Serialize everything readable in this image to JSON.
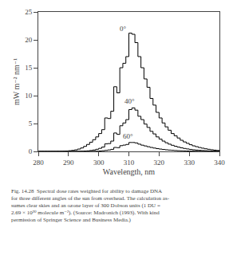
{
  "chart_data": {
    "type": "step",
    "xlabel": "Wavelength, nm",
    "ylabel": "mW m⁻² nm⁻¹",
    "caption": "Fig. 14.28  Spectral dose rates weighted for ability to damage DNA\nfor three different angles of the sun from overhead. The calculation as-\nsumes clear skies and an ozone layer of 300 Dobson units (1 DU =\n2.69 × 10²⁰ molecule m⁻²). (Source: Madronich (1993). With kind\npermission of Springer Science and Business Media.)",
    "xlim": [
      280,
      340
    ],
    "ylim": [
      0,
      25
    ],
    "xticks": [
      280,
      290,
      300,
      310,
      320,
      330,
      340
    ],
    "yticks": [
      0,
      5,
      10,
      15,
      20,
      25
    ],
    "grid": false,
    "x": [
      280,
      281,
      282,
      283,
      284,
      285,
      286,
      287,
      288,
      289,
      290,
      291,
      292,
      293,
      294,
      295,
      296,
      297,
      298,
      299,
      300,
      301,
      302,
      303,
      304,
      305,
      306,
      307,
      308,
      309,
      310,
      311,
      312,
      313,
      314,
      315,
      316,
      317,
      318,
      319,
      320,
      321,
      322,
      323,
      324,
      325,
      326,
      327,
      328,
      329,
      330,
      331,
      332,
      333,
      334,
      335,
      336,
      337,
      338,
      339,
      340
    ],
    "series": [
      {
        "color": "#000000",
        "values": [
          0.0,
          0.0,
          0.0,
          0.0,
          0.0,
          0.0,
          0.01,
          0.02,
          0.04,
          0.07,
          0.12,
          0.18,
          0.28,
          0.42,
          0.62,
          0.9,
          1.25,
          1.65,
          2.1,
          2.6,
          3.2,
          3.9,
          6.0,
          5.9,
          7.2,
          11.6,
          10.5,
          15.0,
          15.8,
          17.0,
          21.2,
          21.0,
          19.5,
          17.0,
          15.0,
          13.0,
          11.5,
          9.5,
          8.3,
          7.0,
          6.0,
          5.1,
          4.4,
          3.8,
          3.2,
          2.8,
          2.4,
          2.0,
          1.7,
          1.45,
          1.2,
          1.0,
          0.85,
          0.7,
          0.58,
          0.47,
          0.38,
          0.3,
          0.23,
          0.17,
          0.12
        ]
      },
      {
        "color": "#000000",
        "values": [
          0.0,
          0.0,
          0.0,
          0.0,
          0.0,
          0.0,
          0.0,
          0.0,
          0.0,
          0.0,
          0.0,
          0.0,
          0.01,
          0.02,
          0.03,
          0.06,
          0.1,
          0.16,
          0.25,
          0.38,
          0.55,
          0.78,
          1.35,
          1.4,
          1.85,
          3.3,
          3.05,
          4.6,
          5.1,
          5.7,
          7.5,
          7.8,
          7.4,
          6.3,
          5.7,
          4.9,
          4.3,
          3.6,
          3.13,
          2.6,
          2.2,
          1.85,
          1.55,
          1.3,
          1.1,
          0.92,
          0.77,
          0.64,
          0.53,
          0.44,
          0.36,
          0.29,
          0.24,
          0.19,
          0.15,
          0.12,
          0.09,
          0.07,
          0.05,
          0.04,
          0.02
        ]
      },
      {
        "color": "#000000",
        "values": [
          0.0,
          0.0,
          0.0,
          0.0,
          0.0,
          0.0,
          0.0,
          0.0,
          0.0,
          0.0,
          0.0,
          0.0,
          0.0,
          0.0,
          0.0,
          0.0,
          0.0,
          0.01,
          0.02,
          0.04,
          0.07,
          0.12,
          0.18,
          0.26,
          0.37,
          0.71,
          0.67,
          1.03,
          1.13,
          1.25,
          1.6,
          1.6,
          1.52,
          1.3,
          1.12,
          0.98,
          0.84,
          0.71,
          0.6,
          0.5,
          0.42,
          0.35,
          0.29,
          0.24,
          0.2,
          0.16,
          0.13,
          0.11,
          0.09,
          0.07,
          0.06,
          0.05,
          0.04,
          0.03,
          0.02,
          0.02,
          0.01,
          0.01,
          0.01,
          0.0,
          0.0
        ]
      }
    ],
    "annotations": [
      {
        "text": "0°",
        "x": 306.5,
        "y": 22.0
      },
      {
        "text": "40°",
        "x": 308.0,
        "y": 9.0
      },
      {
        "text": "60°",
        "x": 307.5,
        "y": 2.7
      }
    ]
  }
}
